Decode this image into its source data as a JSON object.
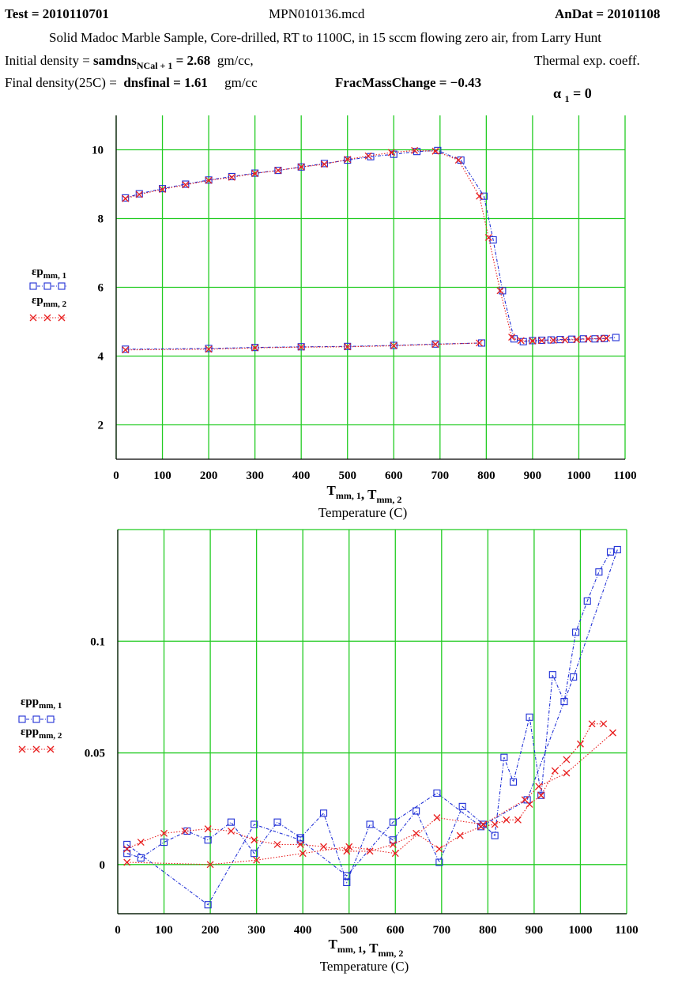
{
  "header": {
    "test_label": "Test = 2010110701",
    "file_name": "MPN010136.mcd",
    "andat_label": "AnDat = 20101108",
    "description": "Solid Madoc Marble Sample, Core-drilled, RT to 1100C, in 15 sccm flowing zero air, from Larry Hunt",
    "initial_density_prefix": "Initial density =",
    "initial_density_var": "samdns",
    "initial_density_sub": "NCal + 1",
    "initial_density_value": "= 2.68",
    "initial_density_unit": "gm/cc,",
    "final_density_prefix": "Final density(25C) =",
    "final_density_expr": "dnsfinal = 1.61",
    "final_density_unit": "gm/cc",
    "frac_mass_change": "FracMassChange = −0.43",
    "thermal_label": "Thermal exp. coeff.",
    "alpha_var": "α",
    "alpha_sub": "1",
    "alpha_value": "= 0"
  },
  "colors": {
    "series1": "#1f2fd6",
    "series2": "#e81e1e",
    "grid": "#22cc22",
    "frame": "#000000"
  },
  "chart_data": [
    {
      "type": "line",
      "xlim": [
        0,
        1100
      ],
      "ylim": [
        1,
        11
      ],
      "x_ticks": [
        0,
        100,
        200,
        300,
        400,
        500,
        600,
        700,
        800,
        900,
        1000,
        1100
      ],
      "y_ticks": [
        2,
        4,
        6,
        8,
        10
      ],
      "x_grid": [
        0,
        100,
        200,
        300,
        400,
        500,
        600,
        700,
        800,
        900,
        1000,
        1100
      ],
      "y_grid": [
        2,
        4,
        6,
        8,
        10
      ],
      "grid": true,
      "legend_position": "left",
      "xlabel": {
        "parts": [
          {
            "text": "T",
            "sub": "mm, 1"
          },
          {
            "text": ", T",
            "sub": "mm, 2"
          }
        ]
      },
      "xlabel2": "Temperature (C)",
      "series": [
        {
          "legend_sym": "εp",
          "legend_sub": "mm, 1",
          "color": "#1f2fd6",
          "marker": "square",
          "x": [
            20,
            50,
            100,
            150,
            200,
            250,
            300,
            350,
            400,
            450,
            500,
            550,
            600,
            650,
            695,
            745,
            795,
            815,
            835,
            860,
            880,
            900,
            920,
            940,
            960,
            985,
            1010,
            1035,
            1055,
            1080
          ],
          "y": [
            8.6,
            8.72,
            8.87,
            9.0,
            9.12,
            9.22,
            9.32,
            9.4,
            9.5,
            9.6,
            9.7,
            9.8,
            9.87,
            9.95,
            9.98,
            9.7,
            8.65,
            7.38,
            5.9,
            4.5,
            4.42,
            4.45,
            4.46,
            4.47,
            4.48,
            4.49,
            4.5,
            4.5,
            4.51,
            4.54
          ],
          "x2": [
            20,
            200,
            300,
            400,
            500,
            600,
            690,
            790
          ],
          "y2": [
            4.2,
            4.22,
            4.25,
            4.27,
            4.28,
            4.31,
            4.35,
            4.38
          ]
        },
        {
          "legend_sym": "εp",
          "legend_sub": "mm, 2",
          "color": "#e81e1e",
          "marker": "x",
          "x": [
            20,
            50,
            100,
            150,
            200,
            250,
            300,
            350,
            400,
            450,
            500,
            545,
            595,
            645,
            690,
            740,
            785,
            805,
            830,
            855,
            875,
            900,
            920,
            945,
            970,
            995,
            1020,
            1045,
            1060
          ],
          "y": [
            8.58,
            8.7,
            8.85,
            8.98,
            9.11,
            9.2,
            9.31,
            9.4,
            9.5,
            9.58,
            9.72,
            9.82,
            9.92,
            9.98,
            9.96,
            9.7,
            8.65,
            7.45,
            5.9,
            4.55,
            4.45,
            4.44,
            4.45,
            4.46,
            4.47,
            4.48,
            4.5,
            4.51,
            4.52
          ],
          "x2": [
            20,
            200,
            300,
            400,
            500,
            600,
            690,
            785
          ],
          "y2": [
            4.18,
            4.2,
            4.24,
            4.26,
            4.27,
            4.3,
            4.34,
            4.38
          ]
        }
      ]
    },
    {
      "type": "line",
      "xlim": [
        0,
        1100
      ],
      "ylim": [
        -0.022,
        0.15
      ],
      "x_ticks": [
        0,
        100,
        200,
        300,
        400,
        500,
        600,
        700,
        800,
        900,
        1000,
        1100
      ],
      "y_ticks": [
        0,
        0.05,
        0.1
      ],
      "y_tick_labels": [
        "0",
        "0.05",
        "0.1"
      ],
      "x_grid": [
        0,
        100,
        200,
        300,
        400,
        500,
        600,
        700,
        800,
        900,
        1000,
        1100
      ],
      "y_grid": [
        -0.022,
        0,
        0.05,
        0.1,
        0.15
      ],
      "grid": true,
      "legend_position": "left",
      "xlabel": {
        "parts": [
          {
            "text": "T",
            "sub": "mm, 1"
          },
          {
            "text": ", T",
            "sub": "mm, 2"
          }
        ]
      },
      "xlabel2": "Temperature (C)",
      "series": [
        {
          "legend_sym": "εpp",
          "legend_sub": "mm, 1",
          "color": "#1f2fd6",
          "marker": "square",
          "x": [
            20,
            50,
            100,
            150,
            195,
            245,
            295,
            345,
            395,
            445,
            495,
            545,
            595,
            645,
            695,
            745,
            790,
            815,
            835,
            855,
            890,
            915,
            940,
            965,
            990,
            1015,
            1040,
            1065
          ],
          "y": [
            0.005,
            0.003,
            0.01,
            0.015,
            0.011,
            0.019,
            0.005,
            0.019,
            0.012,
            0.023,
            -0.008,
            0.018,
            0.011,
            0.024,
            0.001,
            0.026,
            0.018,
            0.013,
            0.048,
            0.037,
            0.066,
            0.031,
            0.085,
            0.073,
            0.104,
            0.118,
            0.131,
            0.14
          ],
          "x2": [
            20,
            195,
            295,
            395,
            495,
            595,
            690,
            785,
            885,
            985,
            1080
          ],
          "y2": [
            0.009,
            -0.018,
            0.018,
            0.011,
            -0.005,
            0.019,
            0.032,
            0.017,
            0.029,
            0.084,
            0.141
          ]
        },
        {
          "legend_sym": "εpp",
          "legend_sub": "mm, 2",
          "color": "#e81e1e",
          "marker": "x",
          "x": [
            20,
            50,
            100,
            145,
            195,
            245,
            295,
            345,
            395,
            445,
            495,
            545,
            595,
            645,
            695,
            740,
            785,
            815,
            840,
            865,
            890,
            915,
            945,
            970,
            1000,
            1025,
            1050
          ],
          "y": [
            0.007,
            0.01,
            0.014,
            0.015,
            0.016,
            0.015,
            0.011,
            0.009,
            0.009,
            0.008,
            0.006,
            0.006,
            0.009,
            0.014,
            0.007,
            0.013,
            0.017,
            0.018,
            0.02,
            0.02,
            0.027,
            0.031,
            0.042,
            0.047,
            0.054,
            0.063,
            0.063
          ],
          "x2": [
            20,
            200,
            300,
            400,
            500,
            600,
            690,
            790,
            880,
            910,
            970,
            1070
          ],
          "y2": [
            0.001,
            0.0,
            0.002,
            0.005,
            0.008,
            0.005,
            0.021,
            0.018,
            0.029,
            0.035,
            0.041,
            0.059
          ]
        }
      ]
    }
  ]
}
